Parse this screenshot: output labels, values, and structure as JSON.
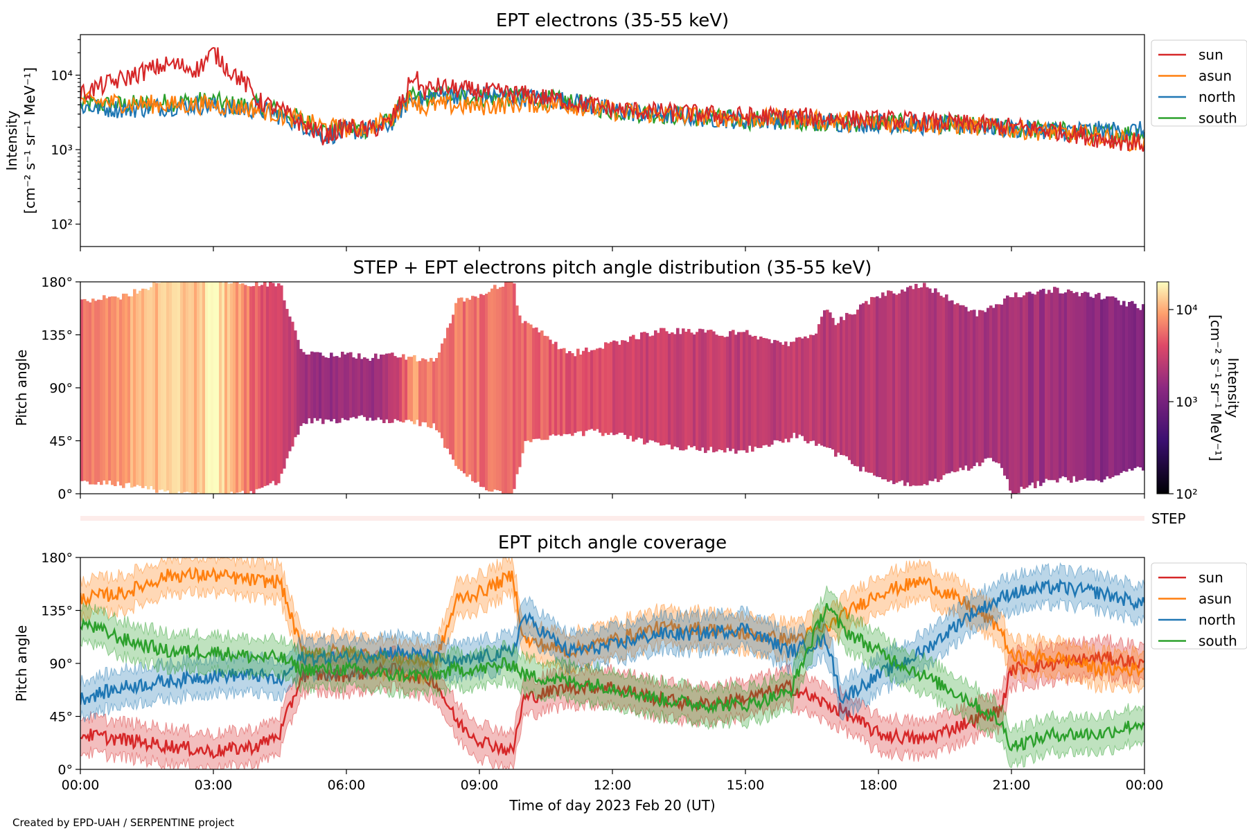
{
  "footer": {
    "credit": "Created by EPD-UAH / SERPENTINE project"
  },
  "colors": {
    "sun": "#d62728",
    "asun": "#ff7f0e",
    "north": "#1f77b4",
    "south": "#2ca02c",
    "step_band": "#fdecea"
  },
  "chart_data": [
    {
      "type": "line",
      "title": "EPT electrons (35-55 keV)",
      "ylabel": "Intensity",
      "yunit": "[cm⁻² s⁻¹ sr⁻¹ MeV⁻¹]",
      "yscale": "log",
      "ylim": [
        50,
        35000
      ],
      "yticks": [
        "10²",
        "10³",
        "10⁴"
      ],
      "x": [
        "00:00",
        "01:00",
        "02:00",
        "02:40",
        "03:00",
        "03:20",
        "04:00",
        "05:00",
        "05:30",
        "06:00",
        "06:30",
        "07:00",
        "07:20",
        "07:30",
        "07:45",
        "08:00",
        "09:00",
        "10:00",
        "11:00",
        "12:00",
        "13:00",
        "14:00",
        "15:00",
        "16:00",
        "17:00",
        "18:00",
        "19:00",
        "20:00",
        "21:00",
        "22:00",
        "23:00",
        "24:00"
      ],
      "legend": {
        "location": "right-outside-top",
        "entries": [
          "sun",
          "asun",
          "north",
          "south"
        ]
      },
      "series": [
        {
          "name": "sun",
          "values": [
            5500,
            9000,
            14000,
            12000,
            20000,
            12000,
            4500,
            2200,
            1500,
            2000,
            1800,
            2300,
            5000,
            10000,
            6000,
            7000,
            6000,
            5500,
            4500,
            3500,
            3200,
            3000,
            2800,
            2800,
            2600,
            2500,
            2400,
            2200,
            2000,
            1800,
            1400,
            1200
          ]
        },
        {
          "name": "asun",
          "values": [
            4500,
            4200,
            4000,
            4000,
            4000,
            3800,
            3500,
            2400,
            2000,
            1900,
            2000,
            2500,
            4500,
            5000,
            3500,
            4000,
            3800,
            4200,
            4000,
            3300,
            3000,
            2800,
            2600,
            2600,
            2400,
            2300,
            2200,
            2100,
            1900,
            1700,
            1500,
            1200
          ]
        },
        {
          "name": "north",
          "values": [
            3800,
            3500,
            3800,
            4000,
            3800,
            3500,
            3500,
            2200,
            1500,
            1800,
            1800,
            2200,
            4000,
            5000,
            4500,
            5500,
            5500,
            5000,
            4500,
            3300,
            3000,
            2700,
            2500,
            2500,
            2300,
            2300,
            2100,
            2100,
            1900,
            1800,
            1800,
            1800
          ]
        },
        {
          "name": "south",
          "values": [
            4000,
            4000,
            4300,
            4500,
            4500,
            4000,
            4000,
            2500,
            1800,
            1900,
            1900,
            2400,
            4500,
            5000,
            4500,
            5500,
            5000,
            5000,
            4400,
            3300,
            3000,
            2700,
            2500,
            2500,
            2300,
            2300,
            2200,
            2100,
            1900,
            1800,
            1600,
            1700
          ]
        }
      ]
    },
    {
      "type": "heatmap",
      "title": "STEP + EPT electrons pitch angle distribution (35-55 keV)",
      "ylabel": "Pitch angle",
      "ylim": [
        0,
        180
      ],
      "yticks": [
        "0°",
        "45°",
        "90°",
        "135°",
        "180°"
      ],
      "colorbar": {
        "label": "Intensity",
        "unit": "[cm⁻² s⁻¹ sr⁻¹ MeV⁻¹]",
        "scale": "log",
        "range": [
          100,
          20000
        ],
        "ticks": [
          "10²",
          "10³",
          "10⁴"
        ]
      },
      "step_label": "STEP"
    },
    {
      "type": "line",
      "title": "EPT pitch angle coverage",
      "ylabel": "Pitch angle",
      "xlabel": "Time of day 2023 Feb 20 (UT)",
      "ylim": [
        0,
        180
      ],
      "yticks": [
        "0°",
        "45°",
        "90°",
        "135°",
        "180°"
      ],
      "xticks": [
        "00:00",
        "03:00",
        "06:00",
        "09:00",
        "12:00",
        "15:00",
        "18:00",
        "21:00",
        "00:00"
      ],
      "band_half_width_deg": 15,
      "legend": {
        "location": "right-outside-top",
        "entries": [
          "sun",
          "asun",
          "north",
          "south"
        ]
      },
      "x": [
        "00:00",
        "01:00",
        "02:00",
        "03:00",
        "04:00",
        "04:30",
        "05:00",
        "06:00",
        "07:00",
        "08:00",
        "08:30",
        "09:00",
        "09:45",
        "10:00",
        "11:00",
        "12:00",
        "13:00",
        "14:00",
        "15:00",
        "16:00",
        "16:50",
        "17:10",
        "18:00",
        "19:00",
        "20:00",
        "20:45",
        "21:00",
        "22:00",
        "23:00",
        "24:00"
      ],
      "series": [
        {
          "name": "sun",
          "values": [
            30,
            25,
            20,
            15,
            20,
            30,
            80,
            80,
            85,
            75,
            40,
            25,
            15,
            60,
            70,
            70,
            60,
            55,
            60,
            70,
            55,
            50,
            30,
            25,
            40,
            50,
            85,
            90,
            95,
            90
          ]
        },
        {
          "name": "asun",
          "values": [
            145,
            150,
            165,
            165,
            160,
            160,
            100,
            100,
            95,
            90,
            145,
            150,
            165,
            110,
            100,
            110,
            120,
            120,
            115,
            110,
            120,
            130,
            150,
            160,
            140,
            120,
            95,
            95,
            85,
            85
          ]
        },
        {
          "name": "north",
          "values": [
            60,
            70,
            75,
            80,
            80,
            75,
            95,
            95,
            100,
            95,
            90,
            95,
            100,
            130,
            100,
            105,
            115,
            115,
            120,
            100,
            110,
            60,
            80,
            100,
            130,
            145,
            150,
            155,
            150,
            140
          ]
        },
        {
          "name": "south",
          "values": [
            125,
            110,
            100,
            100,
            95,
            95,
            85,
            85,
            80,
            80,
            85,
            85,
            90,
            80,
            75,
            70,
            60,
            55,
            55,
            65,
            140,
            120,
            100,
            80,
            60,
            40,
            20,
            30,
            30,
            40
          ]
        }
      ]
    }
  ]
}
